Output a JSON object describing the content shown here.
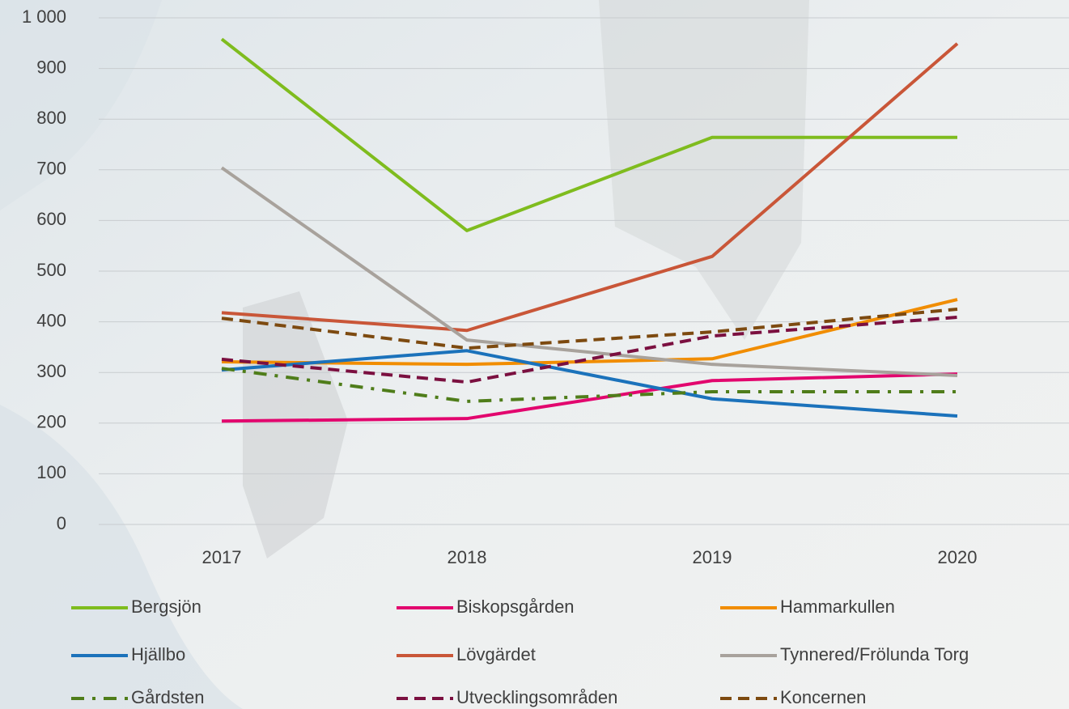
{
  "chart_data": {
    "type": "line",
    "categories": [
      "2017",
      "2018",
      "2019",
      "2020"
    ],
    "ylim": [
      0,
      1000
    ],
    "yticks": [
      0,
      100,
      200,
      300,
      400,
      500,
      600,
      700,
      800,
      900,
      {
        "value": 1000,
        "label": "1 000"
      }
    ],
    "grid": true,
    "legend": "bottom",
    "series": [
      {
        "name": "Bergsjön",
        "color": "#7fbc1e",
        "style": "solid",
        "values": [
          958,
          580,
          764,
          764
        ]
      },
      {
        "name": "Biskopsgården",
        "color": "#e2066e",
        "style": "solid",
        "values": [
          204,
          209,
          284,
          297
        ]
      },
      {
        "name": "Hammarkullen",
        "color": "#f18d00",
        "style": "solid",
        "values": [
          321,
          316,
          327,
          444
        ]
      },
      {
        "name": "Hjällbo",
        "color": "#1b72bb",
        "style": "solid",
        "values": [
          305,
          343,
          248,
          214
        ]
      },
      {
        "name": "Lövgärdet",
        "color": "#c95638",
        "style": "solid",
        "values": [
          418,
          383,
          529,
          949
        ]
      },
      {
        "name": "Tynnered/Frölunda Torg",
        "color": "#a8a29c",
        "style": "solid",
        "values": [
          704,
          364,
          316,
          294
        ]
      },
      {
        "name": "Gårdsten",
        "color": "#4f7d1a",
        "style": "dashdot",
        "values": [
          308,
          243,
          262,
          262
        ]
      },
      {
        "name": "Utvecklingsområden",
        "color": "#7b1040",
        "style": "dashed",
        "values": [
          326,
          281,
          372,
          409
        ]
      },
      {
        "name": "Koncernen",
        "color": "#7d4a10",
        "style": "dashed",
        "values": [
          407,
          348,
          380,
          425
        ]
      }
    ]
  }
}
